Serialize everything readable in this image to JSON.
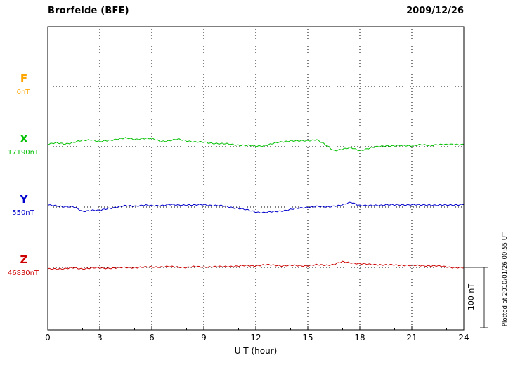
{
  "chart_data": {
    "type": "line",
    "title": "Brorfelde (BFE)",
    "subtitle_date": "2009/12/26",
    "xlabel": "U T (hour)",
    "xlim": [
      0,
      24
    ],
    "x_ticks": [
      0,
      3,
      6,
      9,
      12,
      15,
      18,
      21,
      24
    ],
    "x_start_hour": 0,
    "x_step_hours": 0.5,
    "grid": "dotted vertical gridlines every 3 hours; dotted horizontal baseline per channel",
    "legend_position": "left-of-plot channel labels",
    "scale_bar": {
      "label": "100 nT",
      "value_nT": 100
    },
    "plotted_note": "Plotted at 2010/01/26 00:55 UT",
    "series": [
      {
        "name": "F",
        "baseline_label": "0nT",
        "unit": "nT",
        "color": "#FFA500",
        "values": []
      },
      {
        "name": "X",
        "baseline_label": "17190nT",
        "unit": "nT",
        "color": "#00C000",
        "values": [
          4,
          6,
          5,
          7,
          10,
          12,
          8,
          10,
          13,
          14,
          12,
          14,
          13,
          9,
          10,
          12,
          10,
          8,
          7,
          6,
          5,
          4,
          3,
          2,
          1,
          2,
          5,
          8,
          10,
          9,
          10,
          12,
          3,
          -6,
          -4,
          -2,
          -6,
          -3,
          0,
          2,
          1,
          2,
          2,
          3,
          2,
          4,
          3,
          4,
          4
        ]
      },
      {
        "name": "Y",
        "baseline_label": "550nT",
        "unit": "nT",
        "color": "#0000CC",
        "values": [
          3,
          2,
          1,
          0,
          -7,
          -5,
          -6,
          -2,
          0,
          2,
          2,
          3,
          2,
          3,
          4,
          3,
          4,
          3,
          4,
          3,
          2,
          0,
          -2,
          -5,
          -8,
          -9,
          -8,
          -6,
          -4,
          -2,
          0,
          1,
          0,
          2,
          3,
          8,
          3,
          2,
          3,
          4,
          3,
          4,
          4,
          3,
          4,
          3,
          3,
          4,
          4
        ]
      },
      {
        "name": "Z",
        "baseline_label": "46830nT",
        "unit": "nT",
        "color": "#CC0000",
        "values": [
          -3,
          -2,
          -2,
          -1,
          -2,
          -1,
          -1,
          -1,
          -1,
          0,
          0,
          0,
          1,
          1,
          1,
          1,
          0,
          1,
          1,
          1,
          1,
          2,
          2,
          3,
          3,
          4,
          4,
          3,
          3,
          3,
          3,
          4,
          4,
          5,
          9,
          8,
          6,
          5,
          5,
          4,
          4,
          4,
          3,
          3,
          3,
          2,
          1,
          0,
          -1
        ]
      }
    ]
  }
}
